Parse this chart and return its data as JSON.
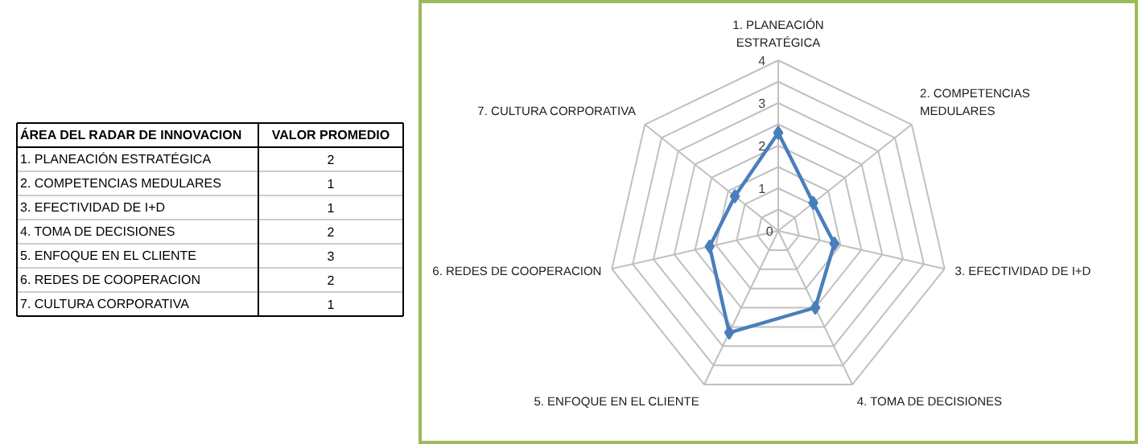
{
  "chart_data": [
    {
      "type": "other",
      "annotations": [
        "ÁREA DEL RADAR DE INNOVACION",
        "VALOR PROMEDIO",
        "1. PLANEACIÓN ESTRATÉGICA",
        "2",
        "2. COMPETENCIAS MEDULARES",
        "1",
        "3. EFECTIVIDAD DE I+D",
        "1",
        "4. TOMA DE DECISIONES",
        "2",
        "5. ENFOQUE EN EL CLIENTE",
        "3",
        "6. REDES DE COOPERACION",
        "2",
        "7. CULTURA CORPORATIVA",
        "1"
      ]
    },
    {
      "type": "radar",
      "categories": [
        "1. PLANEACIÓN\nESTRATÉGICA",
        "2. COMPETENCIAS\nMEDULARES",
        "3. EFECTIVIDAD DE I+D",
        "4. TOMA DE DECISIONES",
        "5. ENFOQUE EN EL CLIENTE",
        "6. REDES DE COOPERACION",
        "7. CULTURA CORPORATIVA"
      ],
      "series": [
        {
          "color": "#4a7ebb",
          "values": [
            2.3,
            1.05,
            1.35,
            2.0,
            2.65,
            1.65,
            1.3
          ]
        }
      ],
      "ylim": [
        0,
        4
      ],
      "yticks": [
        0,
        1,
        2,
        3,
        4
      ],
      "grid": true,
      "marker": "diamond",
      "line_style": "solid"
    }
  ]
}
